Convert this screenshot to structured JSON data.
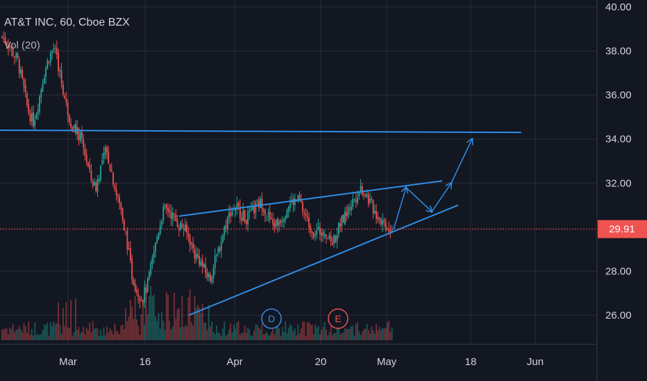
{
  "header": {
    "title": "AT&T INC, 60, Cboe BZX",
    "indicator": "Vol (20)"
  },
  "chart_data": {
    "type": "candlestick",
    "symbol": "AT&T INC",
    "interval": "60",
    "exchange": "Cboe BZX",
    "y_ticks": [
      "40.00",
      "38.00",
      "36.00",
      "34.00",
      "32.00",
      "28.00",
      "26.00"
    ],
    "ylim": [
      25,
      40.1
    ],
    "x_ticks": [
      "Mar",
      "16",
      "Apr",
      "20",
      "May",
      "18",
      "Jun"
    ],
    "last_price": "29.91",
    "last_price_value": 29.91,
    "colors": {
      "up": "#26a69a",
      "down": "#ef5350",
      "drawing": "#2f8fe8",
      "price_line": "#ef5350",
      "grid": "#2a2e39",
      "background": "#131722"
    },
    "events": [
      {
        "label": "D",
        "color": "#2f8fe8"
      },
      {
        "label": "E",
        "color": "#ef5350"
      }
    ],
    "price_path": [
      [
        38.6,
        38.7
      ],
      [
        38.3,
        38.5
      ],
      [
        37.7,
        38.2
      ],
      [
        37.3,
        37.8
      ],
      [
        36.1,
        36.9
      ],
      [
        35.0,
        35.6
      ],
      [
        34.5,
        35.0
      ],
      [
        35.5,
        35.8
      ],
      [
        36.8,
        37.0
      ],
      [
        37.6,
        37.8
      ],
      [
        38.1,
        38.2
      ],
      [
        37.0,
        37.3
      ],
      [
        35.8,
        36.0
      ],
      [
        34.8,
        35.0
      ],
      [
        34.3,
        34.6
      ],
      [
        34.0,
        34.2
      ],
      [
        33.2,
        33.4
      ],
      [
        32.0,
        32.5
      ],
      [
        31.5,
        32.0
      ],
      [
        32.6,
        32.9
      ],
      [
        33.4,
        33.6
      ],
      [
        32.4,
        32.8
      ],
      [
        31.3,
        31.6
      ],
      [
        30.5,
        31.0
      ],
      [
        29.0,
        29.8
      ],
      [
        27.6,
        28.0
      ],
      [
        26.9,
        27.3
      ],
      [
        26.5,
        27.0
      ],
      [
        27.2,
        27.6
      ],
      [
        28.4,
        28.8
      ],
      [
        29.5,
        30.0
      ],
      [
        30.6,
        30.9
      ],
      [
        30.7,
        30.9
      ],
      [
        30.3,
        30.6
      ],
      [
        30.0,
        30.2
      ],
      [
        29.8,
        30.1
      ],
      [
        29.4,
        29.6
      ],
      [
        28.6,
        29.0
      ],
      [
        28.3,
        28.7
      ],
      [
        27.8,
        28.2
      ],
      [
        27.5,
        27.8
      ],
      [
        28.3,
        28.6
      ],
      [
        29.1,
        29.4
      ],
      [
        30.0,
        30.3
      ],
      [
        30.6,
        30.9
      ],
      [
        30.9,
        31.0
      ],
      [
        30.5,
        30.7
      ],
      [
        30.3,
        30.5
      ],
      [
        30.5,
        30.7
      ],
      [
        30.9,
        31.1
      ],
      [
        31.0,
        31.2
      ],
      [
        30.5,
        30.7
      ],
      [
        30.0,
        30.2
      ],
      [
        30.1,
        30.3
      ],
      [
        30.4,
        30.6
      ],
      [
        30.9,
        31.1
      ],
      [
        31.0,
        31.3
      ],
      [
        31.1,
        31.4
      ],
      [
        30.6,
        30.8
      ],
      [
        30.0,
        30.3
      ],
      [
        29.6,
        29.9
      ],
      [
        29.7,
        29.9
      ],
      [
        29.8,
        30.0
      ],
      [
        29.2,
        29.5
      ],
      [
        29.3,
        29.6
      ],
      [
        30.0,
        30.3
      ],
      [
        30.4,
        30.6
      ],
      [
        30.9,
        31.1
      ],
      [
        31.3,
        31.5
      ],
      [
        31.7,
        31.9
      ],
      [
        31.4,
        31.6
      ],
      [
        30.9,
        31.1
      ],
      [
        30.5,
        30.7
      ],
      [
        30.2,
        30.4
      ],
      [
        30.0,
        30.1
      ],
      [
        29.9,
        30.0
      ]
    ],
    "trend_lines": [
      {
        "from": [
          0,
          34.4
        ],
        "to": [
          751,
          34.3
        ]
      },
      {
        "from": [
          258,
          30.5
        ],
        "to": [
          637,
          32.1
        ]
      },
      {
        "from": [
          272,
          26.0
        ],
        "to": [
          660,
          31.0
        ]
      }
    ],
    "projection": [
      [
        567,
        29.9
      ],
      [
        585,
        31.8
      ],
      [
        622,
        30.7
      ],
      [
        650,
        32.0
      ],
      [
        680,
        34.0
      ]
    ]
  }
}
